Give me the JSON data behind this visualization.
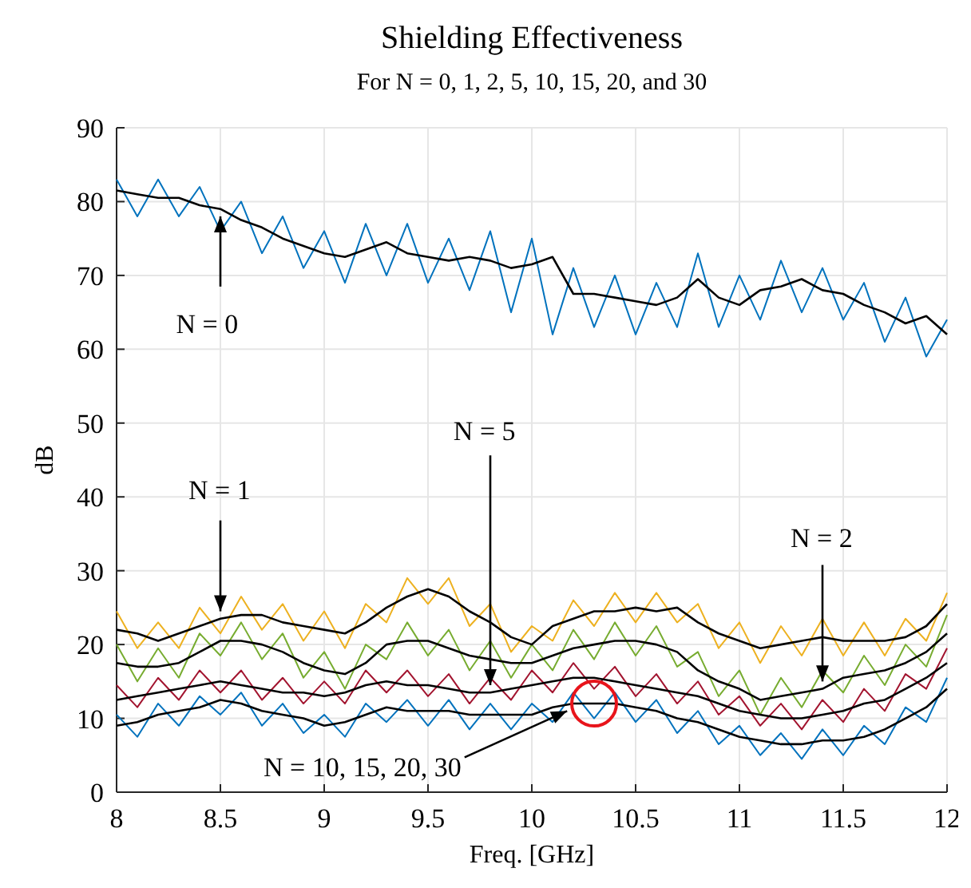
{
  "chart_data": {
    "type": "line",
    "title": "Shielding Effectiveness",
    "subtitle": "For N = 0, 1, 2, 5, 10, 15, 20, and 30",
    "xlabel": "Freq. [GHz]",
    "ylabel": "dB",
    "x": [
      8,
      8.1,
      8.2,
      8.3,
      8.4,
      8.5,
      8.6,
      8.7,
      8.8,
      8.9,
      9,
      9.1,
      9.2,
      9.3,
      9.4,
      9.5,
      9.6,
      9.7,
      9.8,
      9.9,
      10,
      10.1,
      10.2,
      10.3,
      10.4,
      10.5,
      10.6,
      10.7,
      10.8,
      10.9,
      11,
      11.1,
      11.2,
      11.3,
      11.4,
      11.5,
      11.6,
      11.7,
      11.8,
      11.9,
      12
    ],
    "xlim": [
      8,
      12
    ],
    "xticks": [
      8,
      8.5,
      9,
      9.5,
      10,
      10.5,
      11,
      11.5,
      12
    ],
    "ylim": [
      0,
      90
    ],
    "yticks": [
      0,
      10,
      20,
      30,
      40,
      50,
      60,
      70,
      80,
      90
    ],
    "grid": true,
    "marker": "none",
    "line_style": "solid",
    "series": [
      {
        "color": "#0072bd",
        "values": [
          83,
          78,
          83,
          78,
          82,
          76,
          80,
          73,
          78,
          71,
          76,
          69,
          77,
          70,
          77,
          69,
          75,
          68,
          76,
          65,
          75,
          62,
          71,
          63,
          70,
          62,
          69,
          63,
          73,
          63,
          70,
          64,
          72,
          65,
          71,
          64,
          69,
          61,
          67,
          59,
          64
        ]
      },
      {
        "color": "#edb120",
        "values": [
          24.5,
          19.5,
          23,
          19.5,
          25,
          21.5,
          26.5,
          22,
          25.5,
          20.5,
          24.5,
          19.5,
          25.5,
          23,
          29,
          25.5,
          29,
          22.5,
          25.5,
          19,
          22.5,
          20.5,
          26,
          22.5,
          27,
          23,
          27,
          23,
          25.5,
          19.5,
          23,
          17.5,
          22.5,
          18.5,
          23.5,
          18.5,
          23,
          18.5,
          23.5,
          20.5,
          27
        ]
      },
      {
        "color": "#77ac30",
        "values": [
          20,
          15,
          19.5,
          15.5,
          21.5,
          18.5,
          23,
          18,
          21.5,
          15.5,
          19,
          14,
          20,
          18,
          23,
          18.5,
          22,
          16.5,
          20.5,
          15.5,
          20,
          16.5,
          22,
          18,
          23,
          18.5,
          22.5,
          17,
          19,
          13,
          16.5,
          10.5,
          15.5,
          11.5,
          16.5,
          13.5,
          18.5,
          14.5,
          20,
          17,
          24
        ]
      },
      {
        "color": "#a2142f",
        "values": [
          14.5,
          11.5,
          15.5,
          12.5,
          16.5,
          13.5,
          16.5,
          12.5,
          15.5,
          12,
          15,
          12,
          16.5,
          13.5,
          16.5,
          13,
          16,
          12,
          15.5,
          12.5,
          16.5,
          13.5,
          17.5,
          14,
          17,
          13,
          16,
          12,
          15,
          10.5,
          13,
          9,
          12,
          8.5,
          12.5,
          9.5,
          14,
          11,
          16,
          14,
          19.5
        ]
      },
      {
        "color": "#0072bd",
        "values": [
          10.5,
          7.5,
          12,
          9,
          13,
          10.5,
          13.5,
          9,
          12,
          8,
          10.5,
          7.5,
          12,
          9.5,
          12.5,
          9,
          12.5,
          8.5,
          12,
          8.5,
          12,
          9.5,
          13.5,
          10,
          13.5,
          9.5,
          12.5,
          8,
          11,
          6.5,
          9,
          5,
          8,
          4.5,
          8.5,
          5,
          9,
          6.5,
          11.5,
          9.5,
          15.5
        ]
      },
      {
        "color": "#000000",
        "values": [
          81.5,
          81,
          80.5,
          80.5,
          79.5,
          79,
          77.5,
          76.5,
          75,
          74,
          73,
          72.5,
          73.5,
          74.5,
          73,
          72.5,
          72,
          72.5,
          72,
          71,
          71.5,
          72.5,
          67.5,
          67.5,
          67,
          66.5,
          66,
          67,
          69.5,
          67,
          66,
          68,
          68.5,
          69.5,
          68,
          67.5,
          66,
          65,
          63.5,
          64.5,
          62
        ]
      },
      {
        "color": "#000000",
        "values": [
          22,
          21.5,
          20.5,
          21.5,
          22.5,
          23.5,
          24,
          24,
          23,
          22.5,
          22,
          21.5,
          23,
          25,
          26.5,
          27.5,
          26.5,
          24.5,
          23,
          21,
          20,
          22.5,
          23.5,
          24.5,
          24.5,
          25,
          24.5,
          25,
          23,
          21.5,
          20.5,
          19.5,
          20,
          20.5,
          21,
          20.5,
          20.5,
          20.5,
          21,
          22.5,
          25.5
        ]
      },
      {
        "color": "#000000",
        "values": [
          17.5,
          17,
          17,
          17.5,
          19,
          20.5,
          20.5,
          20,
          19,
          17.5,
          16.5,
          16,
          17.5,
          20,
          20.5,
          20.5,
          19.5,
          18.5,
          18,
          17.5,
          17.5,
          18.5,
          19.5,
          20,
          20.5,
          20.5,
          20,
          19,
          16.5,
          15,
          14,
          12.5,
          13,
          13.5,
          14,
          15.5,
          16,
          16.5,
          17.5,
          19,
          21.5
        ]
      },
      {
        "color": "#000000",
        "values": [
          12.5,
          13,
          13.5,
          14,
          14.5,
          15,
          14.5,
          14,
          13.5,
          13.5,
          13,
          13.5,
          14.5,
          15,
          14.5,
          14.5,
          14,
          13.5,
          13.5,
          14,
          14.5,
          15,
          15.5,
          15.5,
          15,
          14.5,
          14,
          13.5,
          13,
          12,
          11,
          10.5,
          10,
          10,
          10.5,
          11,
          12,
          12.5,
          14,
          15.5,
          17.5
        ]
      },
      {
        "color": "#000000",
        "values": [
          9,
          9.5,
          10.5,
          11,
          11.5,
          12.5,
          12,
          11,
          10.5,
          10,
          9,
          9.5,
          10.5,
          11.5,
          11,
          11,
          11,
          10.5,
          10.5,
          10.5,
          10.5,
          11.5,
          12,
          12,
          12,
          11.5,
          11,
          10,
          9.5,
          8.5,
          7.5,
          7,
          6.5,
          6.5,
          7,
          7,
          7.5,
          8.5,
          10,
          11.5,
          14
        ]
      }
    ],
    "annotations": [
      {
        "text": "N = 0",
        "x": 8.5,
        "y": 78
      },
      {
        "text": "N = 1",
        "x": 8.5,
        "y": 24.5
      },
      {
        "text": "N = 5",
        "x": 9.8,
        "y": 14.5
      },
      {
        "text": "N = 2",
        "x": 11.4,
        "y": 15
      },
      {
        "text": "N = 10, 15, 20, 30",
        "x": 10.17,
        "y": 11
      }
    ]
  }
}
